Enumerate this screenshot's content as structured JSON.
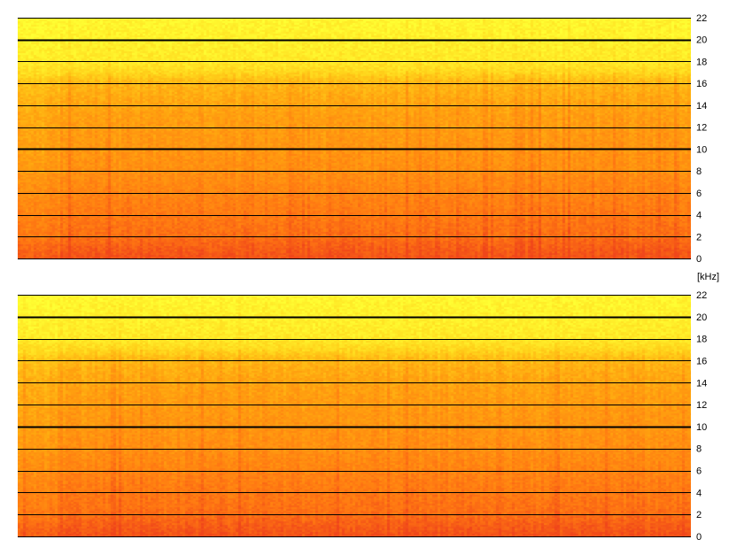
{
  "chart_data": [
    {
      "type": "heatmap",
      "channel": 1,
      "y_unit": "[kHz]",
      "ylim": [
        0,
        22
      ],
      "y_ticks": [
        0,
        2,
        4,
        6,
        8,
        10,
        12,
        14,
        16,
        18,
        20,
        22
      ],
      "y_tick_labels": [
        "0",
        "2",
        "4",
        "6",
        "8",
        "10",
        "12",
        "14",
        "16",
        "18",
        "20",
        "22"
      ],
      "major_gridlines_khz": [
        10,
        20
      ],
      "colormap": [
        "#ffff33",
        "#ffd21a",
        "#ffa30f",
        "#ff7812",
        "#f0461a"
      ],
      "intensity_profile_by_freq_khz": {
        "freq": [
          0,
          1,
          2,
          4,
          6,
          8,
          10,
          12,
          14,
          16,
          17,
          18,
          20,
          22
        ],
        "level": [
          0.95,
          0.88,
          0.8,
          0.74,
          0.68,
          0.62,
          0.58,
          0.55,
          0.5,
          0.4,
          0.22,
          0.12,
          0.08,
          0.05
        ]
      },
      "distinct_vertical_streak_time_fraction": 0.575
    },
    {
      "type": "heatmap",
      "channel": 2,
      "y_unit": "",
      "ylim": [
        0,
        22
      ],
      "y_ticks": [
        0,
        2,
        4,
        6,
        8,
        10,
        12,
        14,
        16,
        18,
        20,
        22
      ],
      "y_tick_labels": [
        "0",
        "2",
        "4",
        "6",
        "8",
        "10",
        "12",
        "14",
        "16",
        "18",
        "20",
        "22"
      ],
      "major_gridlines_khz": [
        10,
        20
      ],
      "colormap": [
        "#ffff33",
        "#ffd21a",
        "#ffa30f",
        "#ff7812",
        "#f0461a"
      ],
      "intensity_profile_by_freq_khz": {
        "freq": [
          0,
          1,
          2,
          4,
          6,
          8,
          10,
          12,
          14,
          16,
          17,
          18,
          20,
          22
        ],
        "level": [
          0.95,
          0.88,
          0.8,
          0.74,
          0.68,
          0.62,
          0.58,
          0.55,
          0.5,
          0.4,
          0.22,
          0.12,
          0.08,
          0.05
        ]
      },
      "distinct_vertical_streak_time_fraction": 0.575
    }
  ]
}
